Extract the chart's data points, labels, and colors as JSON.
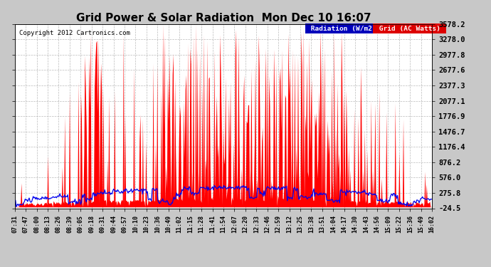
{
  "title": "Grid Power & Solar Radiation  Mon Dec 10 16:07",
  "copyright": "Copyright 2012 Cartronics.com",
  "ymin": -24.5,
  "ymax": 3578.2,
  "yticks": [
    -24.5,
    275.8,
    576.0,
    876.2,
    1176.4,
    1476.7,
    1776.9,
    2077.1,
    2377.3,
    2677.6,
    2977.8,
    3278.0,
    3578.2
  ],
  "background_color": "#c8c8c8",
  "plot_bg_color": "#ffffff",
  "grid_color": "#aaaaaa",
  "title_fontsize": 11,
  "radiation_line_color": "#0000ee",
  "grid_fill_color": "#ff0000",
  "legend_rad_color": "#0000bb",
  "legend_grid_color": "#dd0000",
  "xtick_labels": [
    "07:31",
    "07:47",
    "08:00",
    "08:13",
    "08:26",
    "08:39",
    "09:05",
    "09:18",
    "09:31",
    "09:44",
    "09:57",
    "10:10",
    "10:23",
    "10:36",
    "10:49",
    "11:02",
    "11:15",
    "11:28",
    "11:41",
    "11:54",
    "12:07",
    "12:20",
    "12:33",
    "12:46",
    "12:59",
    "13:12",
    "13:25",
    "13:38",
    "13:51",
    "14:04",
    "14:17",
    "14:30",
    "14:43",
    "14:56",
    "15:09",
    "15:22",
    "15:36",
    "15:49",
    "16:02"
  ]
}
